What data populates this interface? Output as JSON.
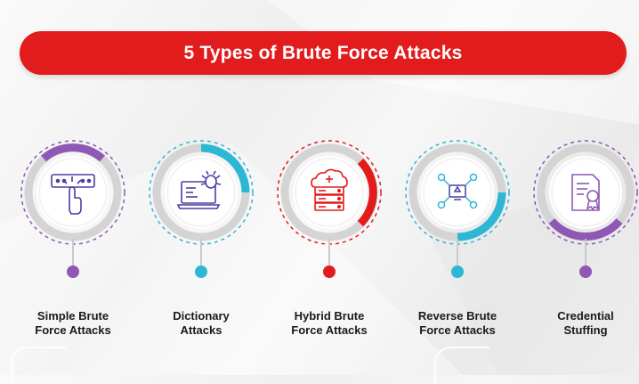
{
  "title": "5 Types of Brute Force Attacks",
  "colors": {
    "banner": "#e21c1c",
    "purple": "#8e58b5",
    "cyan": "#2db7d4",
    "red": "#e21c1c",
    "icon_ink": "#4a3fa0"
  },
  "items": [
    {
      "line1": "Simple Brute",
      "line2": "Force Attacks",
      "accent": "#8e58b5",
      "icon": "hand-press-password-icon"
    },
    {
      "line1": "Dictionary",
      "line2": "Attacks",
      "accent": "#2db7d4",
      "icon": "laptop-bug-icon"
    },
    {
      "line1": "Hybrid Brute",
      "line2": "Force Attacks",
      "accent": "#e21c1c",
      "icon": "cloud-server-icon"
    },
    {
      "line1": "Reverse Brute",
      "line2": "Force Attacks",
      "accent": "#2db7d4",
      "icon": "network-bug-icon"
    },
    {
      "line1": "Credential",
      "line2": "Stuffing",
      "accent": "#8e58b5",
      "icon": "certificate-document-icon"
    }
  ]
}
